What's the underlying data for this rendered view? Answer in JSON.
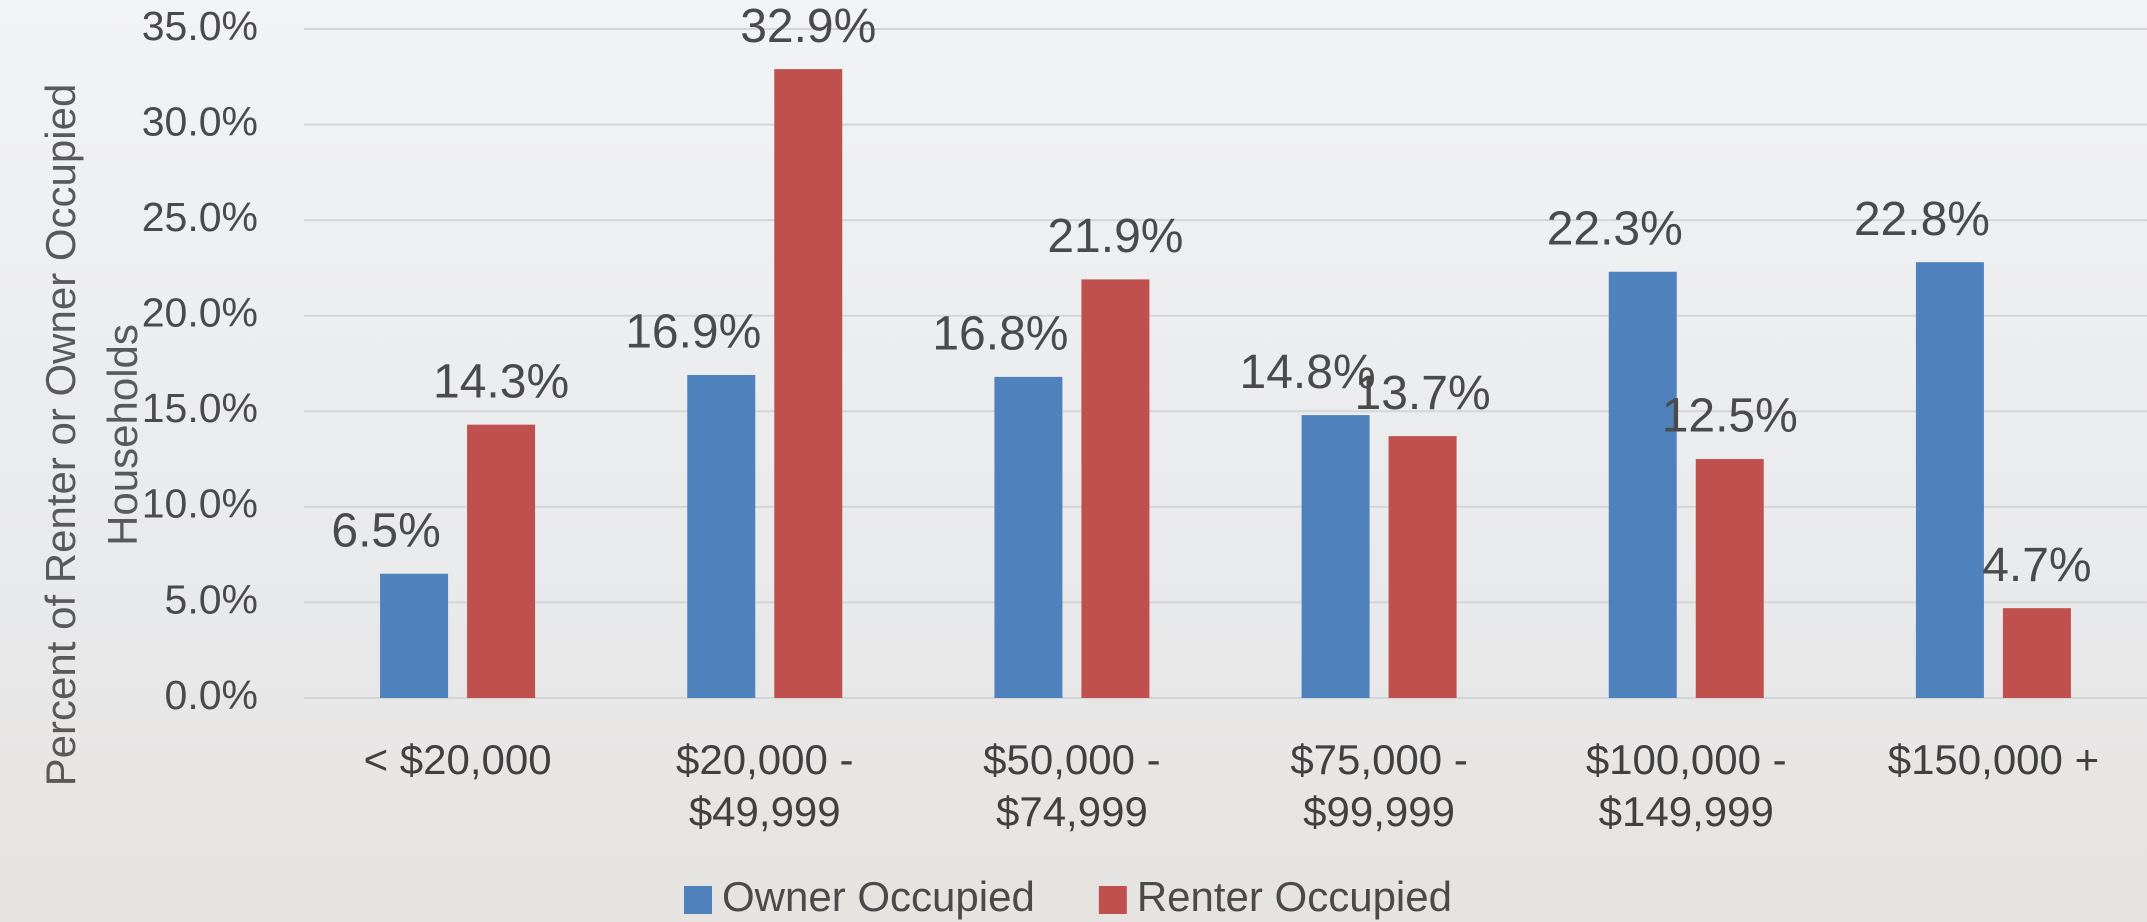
{
  "chart_data": {
    "type": "bar",
    "y_label": "Percent of Renter or Owner Occupied Households",
    "categories": [
      "< $20,000",
      "$20,000 - $49,999",
      "$50,000 - $74,999",
      "$75,000 - $99,999",
      "$100,000 - $149,999",
      "$150,000 +"
    ],
    "series": [
      {
        "name": "Owner Occupied",
        "color": "#4f81bd",
        "values": [
          6.5,
          16.9,
          16.8,
          14.8,
          22.3,
          22.8
        ],
        "value_labels": [
          "6.5%",
          "16.9%",
          "16.8%",
          "14.8%",
          "22.3%",
          "22.8%"
        ]
      },
      {
        "name": "Renter Occupied",
        "color": "#c0504d",
        "values": [
          14.3,
          32.9,
          21.9,
          13.7,
          12.5,
          4.7
        ],
        "value_labels": [
          "14.3%",
          "32.9%",
          "21.9%",
          "13.7%",
          "12.5%",
          "4.7%"
        ]
      }
    ],
    "ylim": [
      0,
      35
    ],
    "yticks": [
      {
        "value": 0,
        "label": "0.0%"
      },
      {
        "value": 5,
        "label": "5.0%"
      },
      {
        "value": 10,
        "label": "10.0%"
      },
      {
        "value": 15,
        "label": "15.0%"
      },
      {
        "value": 20,
        "label": "20.0%"
      },
      {
        "value": 25,
        "label": "25.0%"
      },
      {
        "value": 30,
        "label": "30.0%"
      },
      {
        "value": 35,
        "label": "35.0%"
      }
    ],
    "grid": true,
    "legend": "bottom"
  }
}
